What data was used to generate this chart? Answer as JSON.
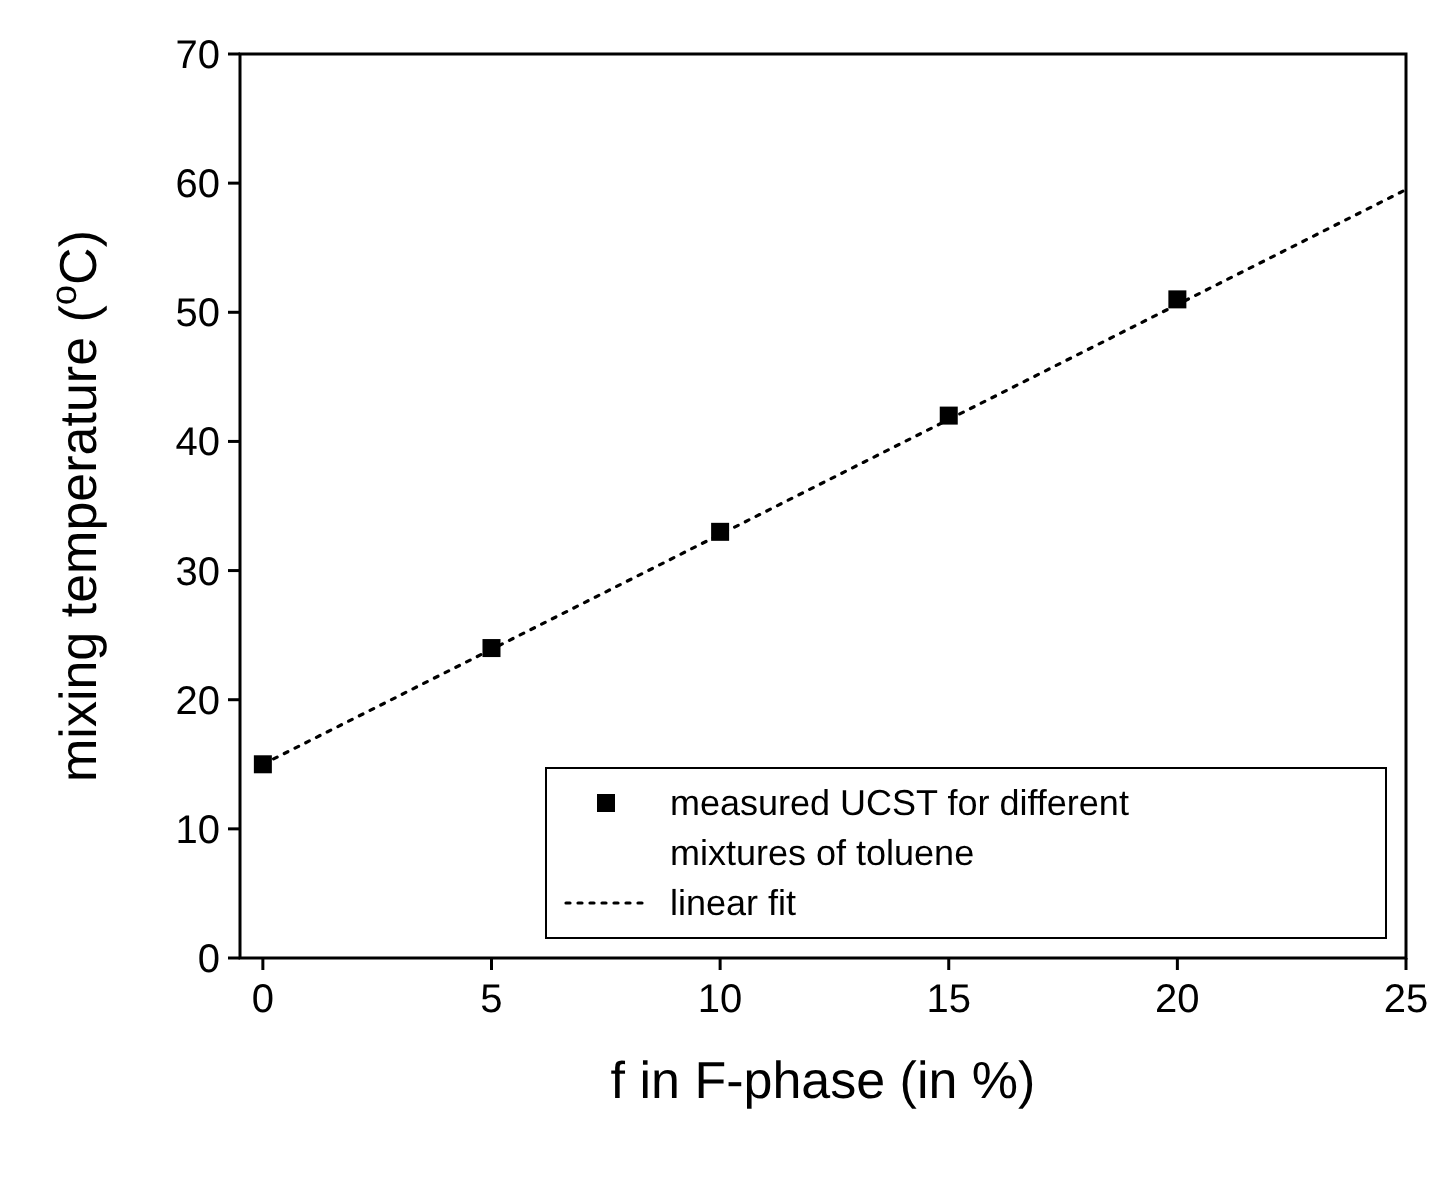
{
  "chart_data": {
    "type": "scatter",
    "xlabel": "f in F-phase (in %)",
    "ylabel": "mixing temperature ($^{o}$C)",
    "xlim": [
      -0.5,
      25
    ],
    "xticks": [
      0,
      5,
      10,
      15,
      20,
      25
    ],
    "ylim": [
      0,
      70
    ],
    "yticks": [
      0,
      10,
      20,
      30,
      40,
      50,
      60,
      70
    ],
    "grid": false,
    "legend": "bottom right",
    "series": [
      {
        "name": "measured UCST for different mixtures of toluene",
        "color": "#000000",
        "marker": "square",
        "x": [
          0,
          5,
          10,
          15,
          20
        ],
        "values": [
          15,
          24,
          33,
          42,
          51
        ]
      },
      {
        "name": "linear fit",
        "type": "line",
        "color": "#000000",
        "line_style": "dotted",
        "marker": "none",
        "x": [
          0,
          25
        ],
        "values": [
          15,
          59.5
        ]
      }
    ]
  }
}
